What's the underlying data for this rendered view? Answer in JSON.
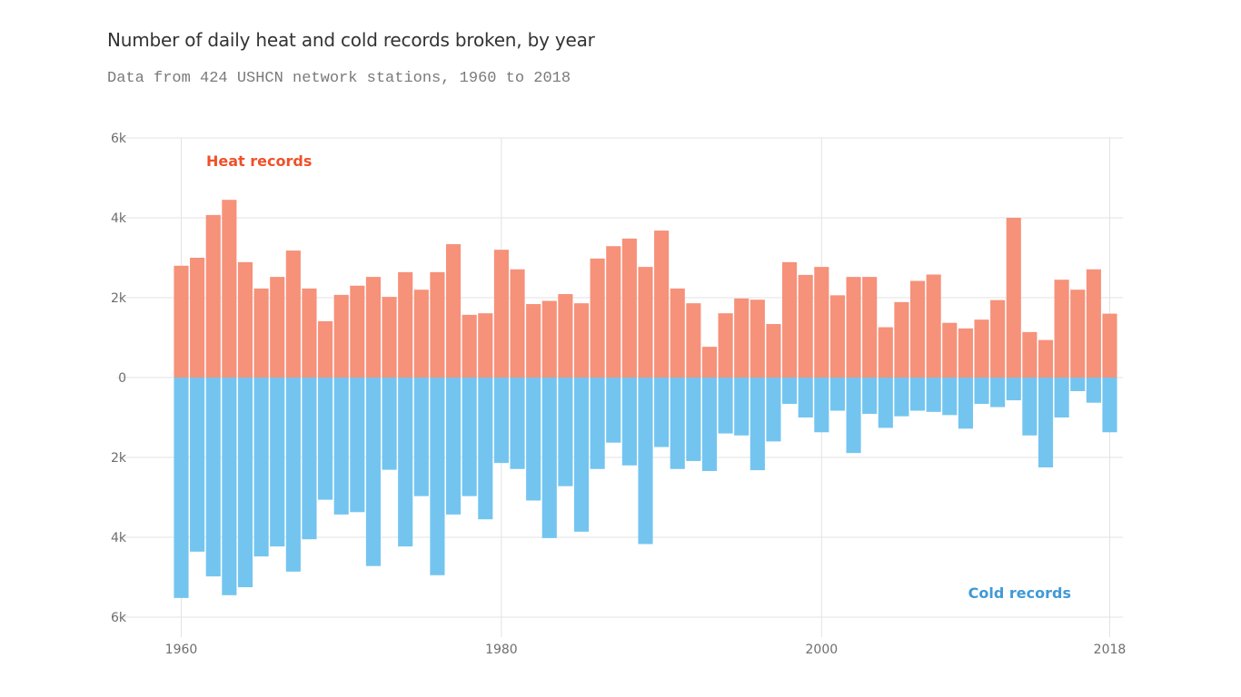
{
  "header": {
    "title": "Number of daily heat and cold records broken, by year",
    "subtitle": "Data from 424 USHCN network stations, 1960 to 2018"
  },
  "chart_data": {
    "type": "bar",
    "title": "Number of daily heat and cold records broken, by year",
    "subtitle": "Data from 424 USHCN network stations, 1960 to 2018",
    "xlabel": "",
    "ylabel": "",
    "ylim": [
      -6000,
      6000
    ],
    "grid": true,
    "y_ticks": [
      6000,
      4000,
      2000,
      0,
      -2000,
      -4000,
      -6000
    ],
    "y_tick_labels": [
      "6k",
      "4k",
      "2k",
      "0",
      "2k",
      "4k",
      "6k"
    ],
    "x_ticks": [
      1960,
      1980,
      2000,
      2018
    ],
    "x_tick_labels": [
      "1960",
      "1980",
      "2000",
      "2018"
    ],
    "colors": {
      "heat": "#f6917a",
      "cold": "#73c5ef",
      "heat_label": "#f0502a",
      "cold_label": "#3f9ad8"
    },
    "annotations": [
      {
        "text": "Heat records",
        "series": "heat",
        "placement": "top-left"
      },
      {
        "text": "Cold records",
        "series": "cold",
        "placement": "bottom-right"
      }
    ],
    "x": [
      1960,
      1961,
      1962,
      1963,
      1964,
      1965,
      1966,
      1967,
      1968,
      1969,
      1970,
      1971,
      1972,
      1973,
      1974,
      1975,
      1976,
      1977,
      1978,
      1979,
      1980,
      1981,
      1982,
      1983,
      1984,
      1985,
      1986,
      1987,
      1988,
      1989,
      1990,
      1991,
      1992,
      1993,
      1994,
      1995,
      1996,
      1997,
      1998,
      1999,
      2000,
      2001,
      2002,
      2003,
      2004,
      2005,
      2006,
      2007,
      2008,
      2009,
      2010,
      2011,
      2012,
      2013,
      2014,
      2015,
      2016,
      2017,
      2018
    ],
    "series": [
      {
        "name": "Heat records",
        "key": "heat",
        "values": [
          2800,
          3000,
          4070,
          4450,
          2890,
          2230,
          2520,
          3180,
          2230,
          1410,
          2070,
          2300,
          2520,
          2020,
          2640,
          2200,
          2640,
          3340,
          1570,
          1610,
          3200,
          2710,
          1840,
          1920,
          2090,
          1860,
          2980,
          3290,
          3480,
          2770,
          3680,
          2230,
          1860,
          770,
          1610,
          1980,
          1950,
          1340,
          2890,
          2570,
          2770,
          2060,
          2520,
          2520,
          1260,
          1890,
          2420,
          2580,
          1370,
          1230,
          1450,
          1940,
          4000,
          1140,
          940,
          2450,
          2200,
          2710,
          1600
        ]
      },
      {
        "name": "Cold records",
        "key": "cold",
        "values": [
          5520,
          4360,
          4980,
          5450,
          5250,
          4480,
          4230,
          4860,
          4050,
          3060,
          3430,
          3370,
          4720,
          2310,
          4230,
          2970,
          4950,
          3430,
          2970,
          3550,
          2140,
          2290,
          3080,
          4020,
          2720,
          3860,
          2290,
          1630,
          2200,
          4170,
          1740,
          2290,
          2090,
          2340,
          1400,
          1450,
          2320,
          1600,
          660,
          1000,
          1370,
          830,
          1890,
          910,
          1260,
          970,
          830,
          860,
          940,
          1280,
          660,
          740,
          570,
          1450,
          2250,
          1000,
          340,
          630,
          1370
        ]
      }
    ]
  }
}
